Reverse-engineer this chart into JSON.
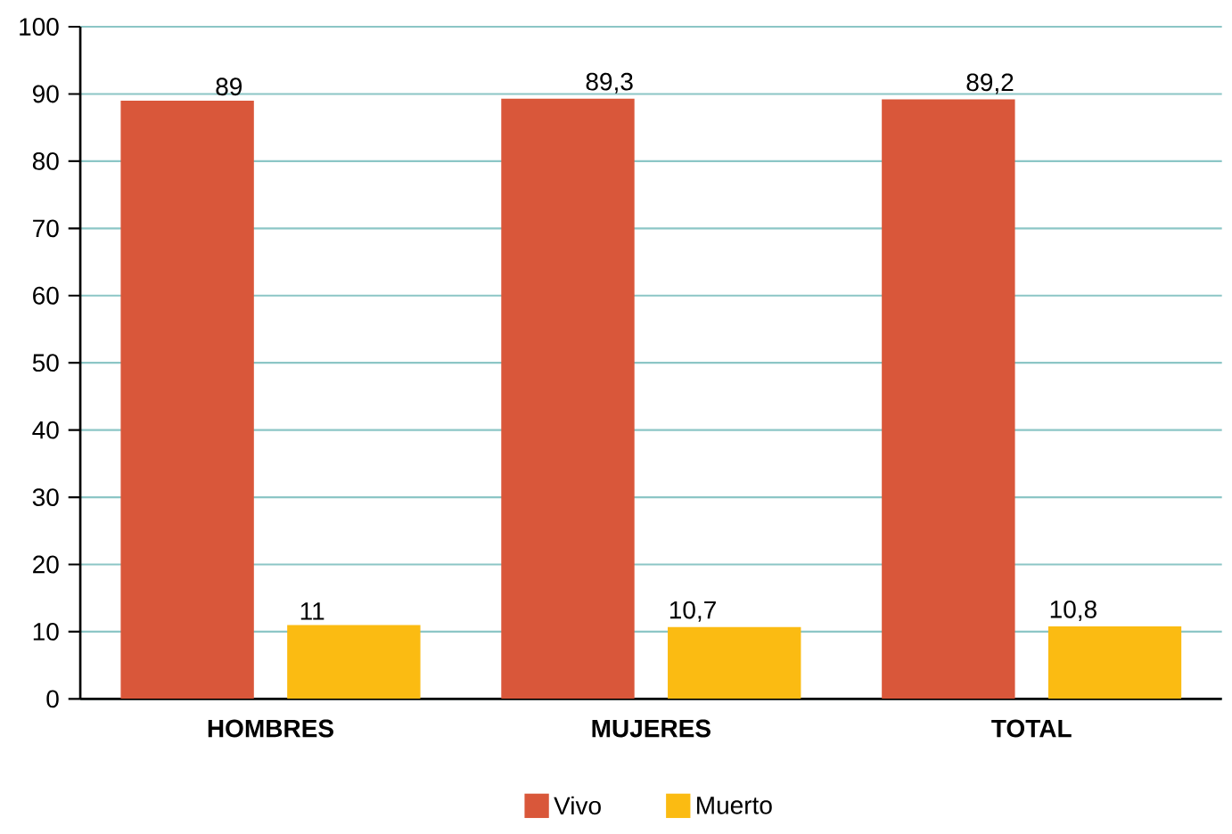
{
  "chart_data": {
    "type": "bar",
    "categories": [
      "HOMBRES",
      "MUJERES",
      "TOTAL"
    ],
    "series": [
      {
        "name": "Vivo",
        "color": "#d9573a",
        "values": [
          89,
          89.3,
          89.2
        ],
        "value_labels": [
          "89",
          "89,3",
          "89,2"
        ]
      },
      {
        "name": "Muerto",
        "color": "#fbbb12",
        "values": [
          11,
          10.7,
          10.8
        ],
        "value_labels": [
          "11",
          "10,7",
          "10,8"
        ]
      }
    ],
    "ylim": [
      0,
      100
    ],
    "yticks": [
      0,
      10,
      20,
      30,
      40,
      50,
      60,
      70,
      80,
      90,
      100
    ],
    "grid": "y",
    "legend": "bottom"
  }
}
